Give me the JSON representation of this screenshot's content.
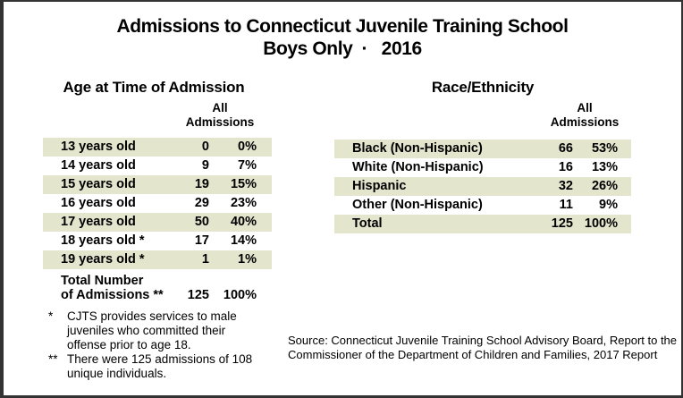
{
  "title": {
    "line1": "Admissions to Connecticut Juvenile Training School",
    "line2": "Boys Only ·  2016"
  },
  "age_table": {
    "title": "Age at Time of Admission",
    "column_header": "All Admissions",
    "rows": [
      {
        "label": "13 years old",
        "count": "0",
        "pct": "0%"
      },
      {
        "label": "14 years old",
        "count": "9",
        "pct": "7%"
      },
      {
        "label": "15 years old",
        "count": "19",
        "pct": "15%"
      },
      {
        "label": "16 years old",
        "count": "29",
        "pct": "23%"
      },
      {
        "label": "17 years old",
        "count": "50",
        "pct": "40%"
      },
      {
        "label": "18 years old *",
        "count": "17",
        "pct": "14%"
      },
      {
        "label": "19 years old *",
        "count": "1",
        "pct": "1%"
      }
    ],
    "total": {
      "label_line1": "Total Number",
      "label_line2": "of Admissions **",
      "count": "125",
      "pct": "100%"
    }
  },
  "race_table": {
    "title": "Race/Ethnicity",
    "column_header": "All Admissions",
    "rows": [
      {
        "label": "Black (Non-Hispanic)",
        "count": "66",
        "pct": "53%"
      },
      {
        "label": "White (Non-Hispanic)",
        "count": "16",
        "pct": "13%"
      },
      {
        "label": "Hispanic",
        "count": "32",
        "pct": "26%"
      },
      {
        "label": "Other (Non-Hispanic)",
        "count": "11",
        "pct": "9%"
      },
      {
        "label": "Total",
        "count": "125",
        "pct": "100%"
      }
    ]
  },
  "footnotes": [
    {
      "marker": "*",
      "text": "CJTS provides services to male juveniles who committed their offense prior to age 18."
    },
    {
      "marker": "**",
      "text": "There were 125 admissions of 108 unique individuals."
    }
  ],
  "source": {
    "lines": [
      "Source: Connecticut Juvenile Training School Advisory Board, Report to the",
      "Commissioner of the Department of Children and Families, 2017 Report"
    ]
  },
  "colors": {
    "row_shade": "#e3e5cd",
    "border": "#333333",
    "text": "#000000",
    "background": "#ffffff"
  },
  "chart_data": [
    {
      "type": "table",
      "title": "Age at Time of Admission",
      "columns": [
        "Age",
        "All Admissions (count)",
        "All Admissions (percent)"
      ],
      "rows": [
        [
          "13 years old",
          0,
          "0%"
        ],
        [
          "14 years old",
          9,
          "7%"
        ],
        [
          "15 years old",
          19,
          "15%"
        ],
        [
          "16 years old",
          29,
          "23%"
        ],
        [
          "17 years old",
          50,
          "40%"
        ],
        [
          "18 years old *",
          17,
          "14%"
        ],
        [
          "19 years old *",
          1,
          "1%"
        ],
        [
          "Total Number of Admissions **",
          125,
          "100%"
        ]
      ]
    },
    {
      "type": "table",
      "title": "Race/Ethnicity",
      "columns": [
        "Race/Ethnicity",
        "All Admissions (count)",
        "All Admissions (percent)"
      ],
      "rows": [
        [
          "Black (Non-Hispanic)",
          66,
          "53%"
        ],
        [
          "White (Non-Hispanic)",
          16,
          "13%"
        ],
        [
          "Hispanic",
          32,
          "26%"
        ],
        [
          "Other (Non-Hispanic)",
          11,
          "9%"
        ],
        [
          "Total",
          125,
          "100%"
        ]
      ]
    }
  ]
}
